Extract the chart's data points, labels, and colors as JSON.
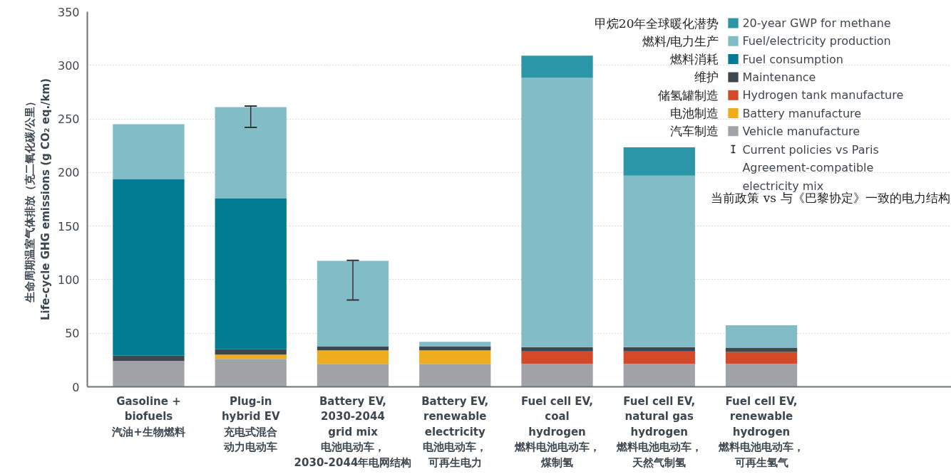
{
  "chart_data": {
    "type": "bar",
    "stacked": true,
    "categories": [
      "Gasoline +\nbiofuels",
      "Plug-in\nhybrid EV",
      "Battery EV,\n2030-2044\ngrid mix",
      "Battery EV,\nrenewable\nelectricity",
      "Fuel cell EV,\ncoal\nhydrogen",
      "Fuel cell EV,\nnatural gas\nhydrogen",
      "Fuel cell EV,\nrenewable\nhydrogen"
    ],
    "ylabel": "生命周期温室气体排放（克二氧化碳/公里）\nLife-cycle GHG emissions (g CO₂ eq./km)",
    "ylim": [
      0,
      350
    ],
    "yticks": [
      0,
      50,
      100,
      150,
      200,
      250,
      300,
      350
    ],
    "grid": "y",
    "legend": "top right",
    "series": [
      {
        "name": "Vehicle manufacture",
        "color": "#a0a4a8",
        "values": [
          24,
          26,
          21.5,
          21.5,
          21.5,
          21.5,
          21.5
        ]
      },
      {
        "name": "Battery manufacture",
        "color": "#eeac1e",
        "values": [
          null,
          4,
          12.5,
          12.5,
          null,
          null,
          null
        ]
      },
      {
        "name": "Hydrogen tank manufacture",
        "color": "#d24a27",
        "values": [
          null,
          null,
          null,
          null,
          11.5,
          11.5,
          11
        ]
      },
      {
        "name": "Maintenance",
        "color": "#3d4750",
        "values": [
          5,
          5,
          3.5,
          3.5,
          4,
          4,
          4
        ]
      },
      {
        "name": "Fuel consumption",
        "color": "#007b91",
        "values": [
          165,
          141,
          null,
          null,
          null,
          null,
          null
        ]
      },
      {
        "name": "Fuel/electricity production",
        "color": "#82bcc7",
        "values": [
          51,
          85,
          80,
          4.5,
          251.5,
          160,
          21
        ],
        "errors": [
          null,
          [
            242,
            262
          ],
          [
            81,
            118
          ],
          null,
          null,
          null,
          null
        ]
      },
      {
        "name": "20-year GWP for methane",
        "color": "#2a96a8",
        "values": [
          null,
          null,
          null,
          null,
          20.5,
          26.5,
          null
        ]
      }
    ],
    "annotations": [
      "汽油+生物燃料",
      "充电式混合动力电动车",
      "电池电动车，2030-2044年电网结构",
      "电池电动车，可再生电力",
      "燃料电池电动车，煤制氢",
      "燃料电池电动车，天然气制氢",
      "燃料电池电动车，可再生氢气",
      "汽车制造",
      "电池制造",
      "储氢罐制造",
      "维护",
      "燃料消耗",
      "燃料/电力生产",
      "甲烷20年全球暖化潜势",
      "Current policies vs Paris\nAgreement-compatible\nelectricity mix",
      "当前政策 vs 与《巴黎协定》一致的电力结构"
    ]
  }
}
